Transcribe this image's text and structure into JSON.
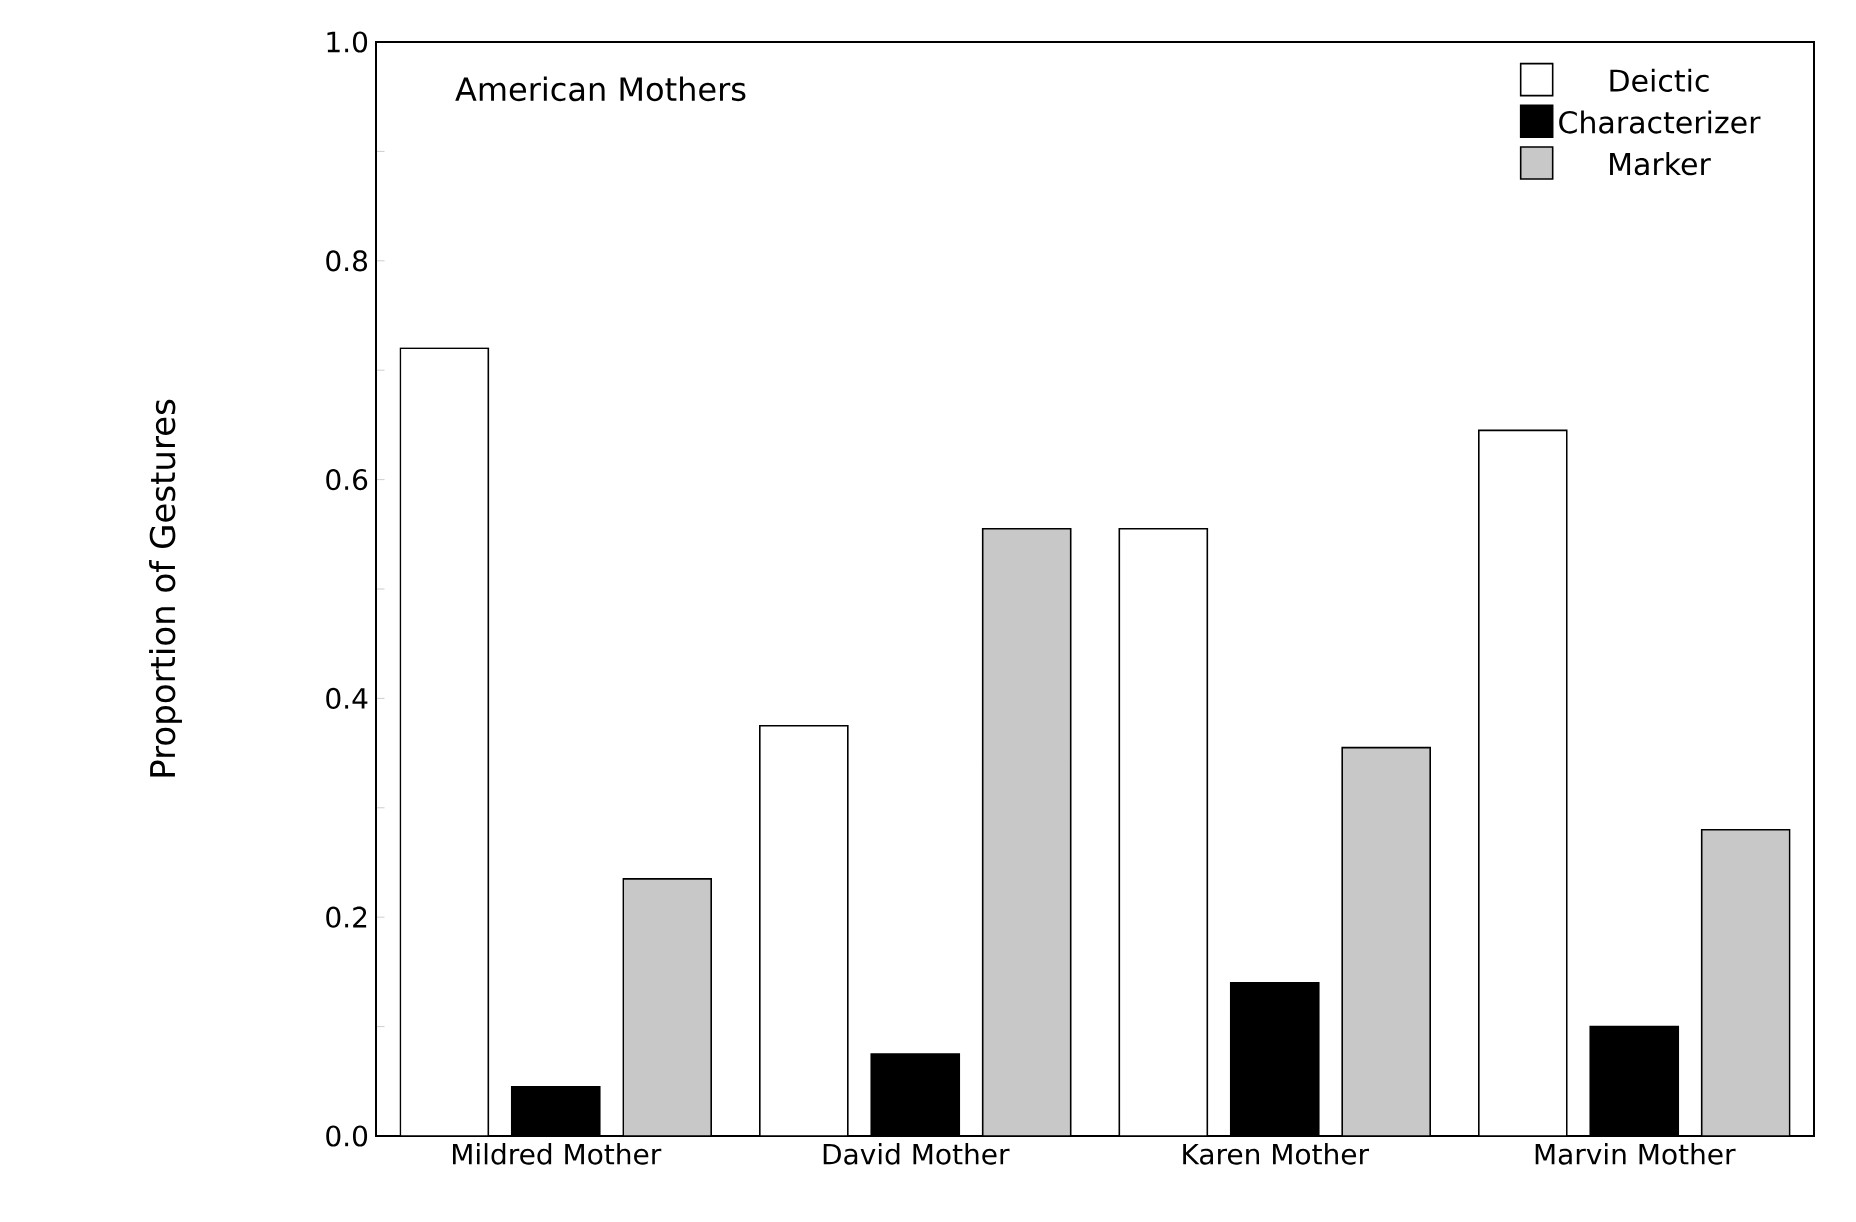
{
  "chart_data": {
    "type": "bar",
    "title": "American Mothers",
    "ylabel": "Proportion of Gestures",
    "categories": [
      "Mildred Mother",
      "David Mother",
      "Karen Mother",
      "Marvin Mother"
    ],
    "series": [
      {
        "name": "Deictic",
        "color": "#ffffff",
        "values": [
          0.72,
          0.375,
          0.555,
          0.645
        ]
      },
      {
        "name": "Characterizer",
        "color": "#000000",
        "values": [
          0.045,
          0.075,
          0.14,
          0.1
        ]
      },
      {
        "name": "Marker",
        "color": "#c8c8c8",
        "values": [
          0.235,
          0.555,
          0.355,
          0.28
        ]
      }
    ],
    "ylim": [
      0,
      1
    ],
    "yticks": [
      {
        "value": 0,
        "label": "0.0"
      },
      {
        "value": 0.1,
        "label": null
      },
      {
        "value": 0.2,
        "label": "0.2"
      },
      {
        "value": 0.3,
        "label": null
      },
      {
        "value": 0.4,
        "label": "0.4"
      },
      {
        "value": 0.5,
        "label": null
      },
      {
        "value": 0.6,
        "label": "0.6"
      },
      {
        "value": 0.7,
        "label": null
      },
      {
        "value": 0.8,
        "label": "0.8"
      },
      {
        "value": 0.9,
        "label": null
      },
      {
        "value": 1,
        "label": "1.0"
      }
    ],
    "legend": "top right",
    "grid": false
  }
}
